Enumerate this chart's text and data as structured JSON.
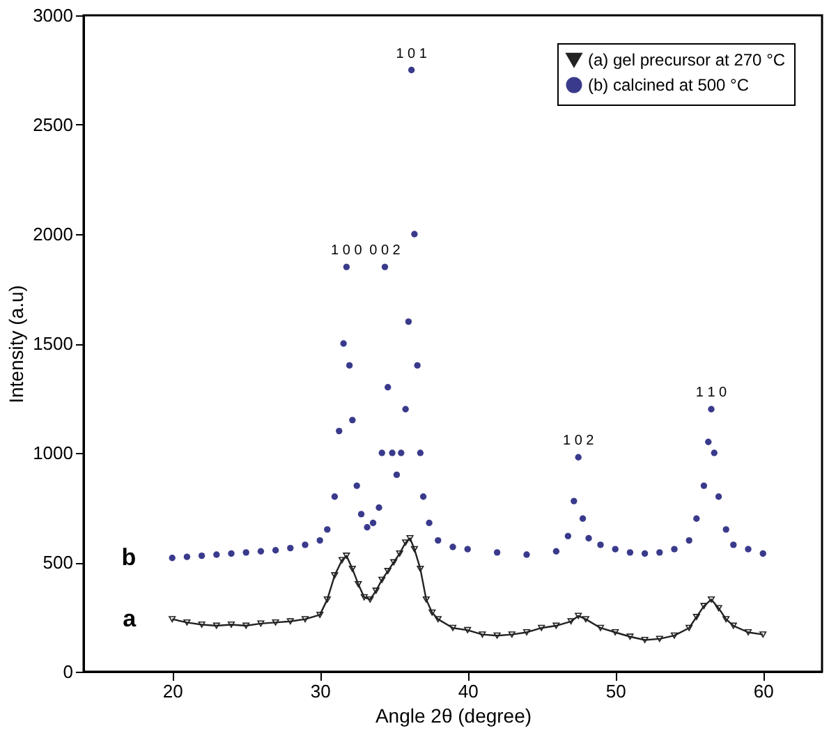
{
  "chart_data": {
    "type": "line",
    "xlabel": "Angle 2θ (degree)",
    "ylabel": "Intensity (a.u)",
    "xlim": [
      14,
      64
    ],
    "xticks": [
      20,
      30,
      40,
      50,
      60
    ],
    "ylim": [
      0,
      3000
    ],
    "yticks": [
      0,
      500,
      1000,
      1500,
      2000,
      2500,
      3000
    ],
    "grid": false,
    "legend": "top right",
    "series": [
      {
        "name": "(a) gel precursor at 270 °C",
        "marker": "triangle",
        "line_style": "solid",
        "color": "#222222",
        "x": [
          20,
          21,
          22,
          23,
          24,
          25,
          26,
          27,
          28,
          29,
          30,
          30.5,
          31,
          31.5,
          31.8,
          32.2,
          32.6,
          33,
          33.4,
          33.8,
          34.2,
          34.6,
          35,
          35.4,
          35.8,
          36.1,
          36.4,
          36.8,
          37.2,
          37.6,
          38,
          39,
          40,
          41,
          42,
          43,
          44,
          45,
          46,
          47,
          47.5,
          48,
          49,
          50,
          51,
          52,
          53,
          54,
          55,
          55.5,
          56,
          56.5,
          57,
          57.5,
          58,
          59,
          60
        ],
        "values": [
          240,
          225,
          215,
          210,
          215,
          210,
          220,
          225,
          230,
          240,
          260,
          330,
          440,
          510,
          530,
          470,
          400,
          340,
          330,
          370,
          420,
          460,
          500,
          540,
          590,
          610,
          560,
          470,
          330,
          270,
          240,
          200,
          190,
          170,
          165,
          170,
          180,
          200,
          210,
          230,
          255,
          240,
          200,
          180,
          160,
          145,
          150,
          165,
          200,
          250,
          300,
          330,
          290,
          240,
          210,
          180,
          170
        ]
      },
      {
        "name": "(b) calcined at 500 °C",
        "type": "scatter",
        "marker": "circle",
        "color": "#3a3a8c",
        "x": [
          20,
          21,
          22,
          23,
          24,
          25,
          26,
          27,
          28,
          29,
          30,
          30.5,
          31,
          31.3,
          31.6,
          31.8,
          32,
          32.2,
          32.5,
          32.8,
          33.2,
          33.6,
          34,
          34.2,
          34.4,
          34.6,
          34.9,
          35.2,
          35.5,
          35.8,
          36,
          36.2,
          36.4,
          36.6,
          36.8,
          37,
          37.4,
          38,
          39,
          40,
          42,
          44,
          46,
          46.8,
          47.2,
          47.5,
          47.8,
          48.2,
          49,
          50,
          51,
          52,
          53,
          54,
          55,
          55.5,
          56,
          56.3,
          56.5,
          56.7,
          57,
          57.5,
          58,
          59,
          60
        ],
        "values": [
          520,
          525,
          530,
          535,
          540,
          545,
          550,
          555,
          565,
          580,
          600,
          650,
          800,
          1100,
          1500,
          1850,
          1400,
          1150,
          850,
          720,
          660,
          680,
          750,
          1000,
          1850,
          1300,
          1000,
          900,
          1000,
          1200,
          1600,
          2750,
          2000,
          1400,
          1000,
          800,
          680,
          600,
          570,
          560,
          545,
          535,
          550,
          620,
          780,
          980,
          700,
          610,
          580,
          560,
          545,
          540,
          545,
          560,
          600,
          700,
          850,
          1050,
          1200,
          1000,
          800,
          650,
          580,
          560,
          540
        ]
      }
    ],
    "annotations": [
      {
        "text": "1 0 0",
        "x": 31.8,
        "y": 1850
      },
      {
        "text": "0 0 2",
        "x": 34.4,
        "y": 1850
      },
      {
        "text": "1 0 1",
        "x": 36.2,
        "y": 2750
      },
      {
        "text": "1 0 2",
        "x": 47.5,
        "y": 980
      },
      {
        "text": "1 1 0",
        "x": 56.5,
        "y": 1200
      },
      {
        "text": "b",
        "x": 20,
        "y": 520
      },
      {
        "text": "a",
        "x": 20,
        "y": 240
      }
    ]
  }
}
